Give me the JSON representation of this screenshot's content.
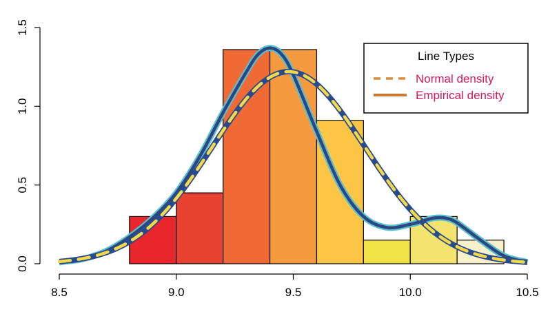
{
  "chart_data": {
    "type": "bar",
    "subtype": "histogram-with-density-curves",
    "title": "",
    "xlabel": "",
    "ylabel": "",
    "xlim": [
      8.5,
      10.5
    ],
    "ylim": [
      0,
      1.5
    ],
    "x_ticks": [
      "8.5",
      "9.0",
      "9.5",
      "10.0",
      "10.5"
    ],
    "y_ticks": [
      "0.0",
      "0.5",
      "1.0",
      "1.5"
    ],
    "bins": [
      {
        "start": 8.8,
        "end": 9.0,
        "density": 0.3,
        "color": "#E8262B"
      },
      {
        "start": 9.0,
        "end": 9.2,
        "density": 0.45,
        "color": "#E84330"
      },
      {
        "start": 9.2,
        "end": 9.4,
        "density": 1.36,
        "color": "#EF6A35"
      },
      {
        "start": 9.4,
        "end": 9.6,
        "density": 1.36,
        "color": "#F59A3E"
      },
      {
        "start": 9.6,
        "end": 9.8,
        "density": 0.91,
        "color": "#FCC545"
      },
      {
        "start": 9.8,
        "end": 10.0,
        "density": 0.15,
        "color": "#EFE245"
      },
      {
        "start": 10.0,
        "end": 10.2,
        "density": 0.3,
        "color": "#F2E46F"
      },
      {
        "start": 10.2,
        "end": 10.4,
        "density": 0.15,
        "color": "#F8F1CB"
      }
    ],
    "series": [
      {
        "name": "Normal density",
        "kind": "normal",
        "mean": 9.48,
        "sd": 0.327,
        "color": "#F4D949",
        "outline_color": "#284A8E",
        "legend_color": "#D98C3B",
        "dash": true
      },
      {
        "name": "Empirical density",
        "kind": "kde",
        "color": "#2C4780",
        "outline_color": "#5BBFCF",
        "legend_color": "#C97A35",
        "dash": false,
        "x": [
          8.5,
          8.6,
          8.7,
          8.8,
          8.9,
          9.0,
          9.1,
          9.2,
          9.3,
          9.35,
          9.4,
          9.45,
          9.5,
          9.6,
          9.7,
          9.8,
          9.9,
          10.0,
          10.05,
          10.1,
          10.15,
          10.2,
          10.3,
          10.4,
          10.5
        ],
        "y": [
          0.01,
          0.03,
          0.08,
          0.17,
          0.29,
          0.45,
          0.68,
          0.96,
          1.22,
          1.33,
          1.37,
          1.33,
          1.2,
          0.84,
          0.5,
          0.3,
          0.23,
          0.25,
          0.27,
          0.29,
          0.29,
          0.26,
          0.15,
          0.05,
          0.01
        ]
      }
    ],
    "legend": {
      "title": "Line Types",
      "position": "top-right",
      "text_color": "#D6185E"
    }
  }
}
